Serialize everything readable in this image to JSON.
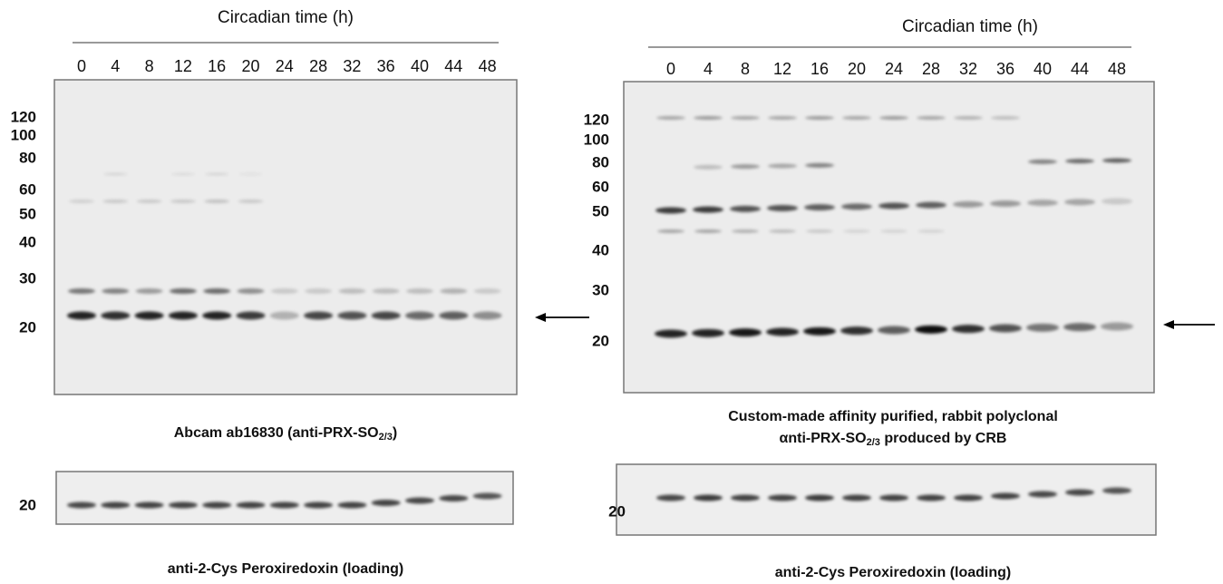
{
  "panels": [
    {
      "header": "Circadian time (h)",
      "lanes": [
        "0",
        "4",
        "8",
        "12",
        "16",
        "20",
        "24",
        "28",
        "32",
        "36",
        "40",
        "44",
        "48"
      ],
      "markers": [
        "120",
        "100",
        "80",
        "60",
        "50",
        "40",
        "30",
        "20"
      ],
      "caption_lines": [
        {
          "text": "Abcam ab16830 (anti-PRX-SO",
          "sub": "2/3",
          "tail": ")"
        }
      ],
      "loading_marker": "20",
      "loading_caption": "anti-2-Cys Peroxiredoxin (loading)"
    },
    {
      "header": "Circadian time (h)",
      "lanes": [
        "0",
        "4",
        "8",
        "12",
        "16",
        "20",
        "24",
        "28",
        "32",
        "36",
        "40",
        "44",
        "48"
      ],
      "markers": [
        "120",
        "100",
        "80",
        "60",
        "50",
        "40",
        "30",
        "20"
      ],
      "caption_lines": [
        {
          "text": "Custom-made affinity purified, rabbit polyclonal"
        },
        {
          "text": "αnti-PRX-SO",
          "sub": "2/3",
          "tail": " produced by CRB"
        }
      ],
      "loading_marker": "20",
      "loading_caption": "anti-2-Cys Peroxiredoxin (loading)"
    }
  ]
}
